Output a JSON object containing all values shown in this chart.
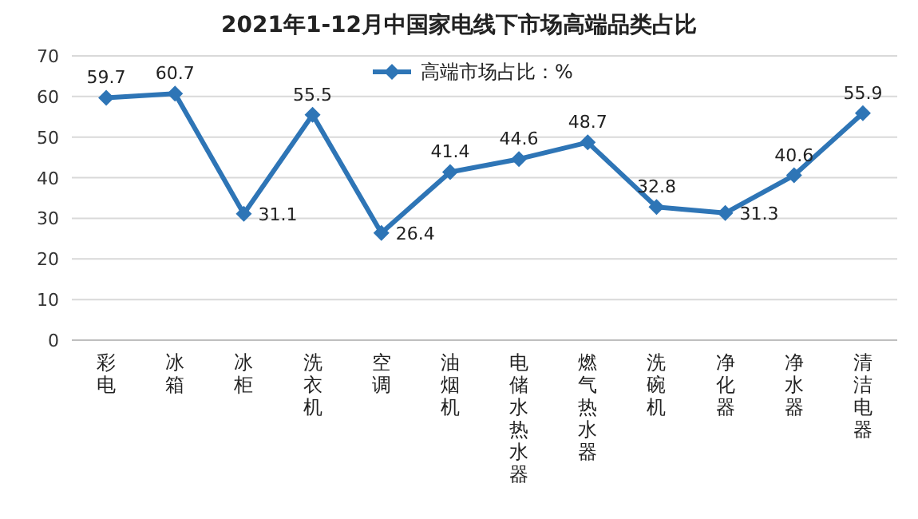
{
  "chart_data": {
    "type": "line",
    "title": "2021年1-12月中国家电线下市场高端品类占比",
    "categories": [
      "彩电",
      "冰箱",
      "冰柜",
      "洗衣机",
      "空调",
      "油烟机",
      "电储水热水器",
      "燃气热水器",
      "洗碗机",
      "净化器",
      "净水器",
      "清洁电器"
    ],
    "series": [
      {
        "name": "高端市场占比：%",
        "color": "#2e75b6",
        "values": [
          59.7,
          60.7,
          31.1,
          55.5,
          26.4,
          41.4,
          44.6,
          48.7,
          32.8,
          31.3,
          40.6,
          55.9
        ]
      }
    ],
    "ylim": [
      0,
      70
    ],
    "yticks": [
      0,
      10,
      20,
      30,
      40,
      50,
      60,
      70
    ],
    "grid": "y",
    "legend": "top",
    "marker": "diamond",
    "line_style": "solid",
    "data_labels": true
  }
}
